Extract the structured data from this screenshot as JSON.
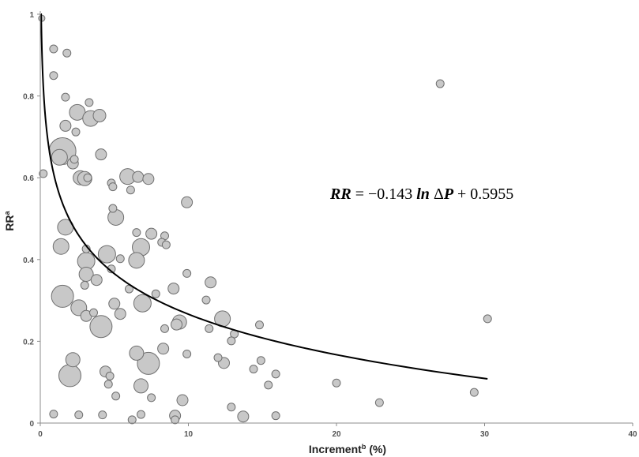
{
  "chart_data": {
    "type": "scatter",
    "subtype": "bubble",
    "xlabel": "Increment",
    "xlabel_superscript": "b",
    "xlabel_unit": "(%)",
    "ylabel": "RR",
    "ylabel_superscript": "a",
    "xlim": [
      0,
      40
    ],
    "ylim": [
      0,
      1
    ],
    "x_ticks": [
      "0",
      "10",
      "20",
      "30",
      "40"
    ],
    "y_ticks": [
      "0",
      "0.2",
      "0.4",
      "0.6",
      "0.8",
      "1"
    ],
    "grid": false,
    "colors": {
      "bubble_fill": "#c8c8c8",
      "bubble_stroke": "#6f6f6f",
      "trend": "#000000",
      "axis": "#8c8c8c"
    },
    "equation": {
      "lhs": "RR",
      "equals": " = −0.143 ",
      "func": "ln",
      "delta": " Δ",
      "var": "P",
      "rest": " +  0.5955"
    },
    "trendline": {
      "model": "logarithmic",
      "a": -0.143,
      "b": 0.5955,
      "x_range": [
        0.05,
        30.2
      ]
    },
    "points": [
      {
        "x": 0.1,
        "y": 0.99,
        "s": 4
      },
      {
        "x": 0.2,
        "y": 0.61,
        "s": 5
      },
      {
        "x": 0.9,
        "y": 0.915,
        "s": 5
      },
      {
        "x": 1.8,
        "y": 0.905,
        "s": 5
      },
      {
        "x": 0.9,
        "y": 0.85,
        "s": 5
      },
      {
        "x": 1.7,
        "y": 0.797,
        "s": 5
      },
      {
        "x": 3.3,
        "y": 0.784,
        "s": 5
      },
      {
        "x": 27.0,
        "y": 0.83,
        "s": 5
      },
      {
        "x": 2.5,
        "y": 0.76,
        "s": 10
      },
      {
        "x": 3.4,
        "y": 0.745,
        "s": 10
      },
      {
        "x": 4.0,
        "y": 0.752,
        "s": 8
      },
      {
        "x": 1.7,
        "y": 0.727,
        "s": 7
      },
      {
        "x": 2.4,
        "y": 0.712,
        "s": 5
      },
      {
        "x": 1.5,
        "y": 0.665,
        "s": 17
      },
      {
        "x": 1.3,
        "y": 0.65,
        "s": 10
      },
      {
        "x": 4.1,
        "y": 0.657,
        "s": 7
      },
      {
        "x": 2.2,
        "y": 0.635,
        "s": 7
      },
      {
        "x": 2.3,
        "y": 0.645,
        "s": 5
      },
      {
        "x": 2.7,
        "y": 0.6,
        "s": 9
      },
      {
        "x": 3.0,
        "y": 0.598,
        "s": 9
      },
      {
        "x": 3.2,
        "y": 0.6,
        "s": 5
      },
      {
        "x": 5.9,
        "y": 0.603,
        "s": 10
      },
      {
        "x": 6.6,
        "y": 0.602,
        "s": 7
      },
      {
        "x": 7.3,
        "y": 0.597,
        "s": 7
      },
      {
        "x": 4.8,
        "y": 0.587,
        "s": 5
      },
      {
        "x": 4.9,
        "y": 0.578,
        "s": 5
      },
      {
        "x": 6.1,
        "y": 0.57,
        "s": 5
      },
      {
        "x": 9.9,
        "y": 0.54,
        "s": 7
      },
      {
        "x": 4.9,
        "y": 0.525,
        "s": 5
      },
      {
        "x": 5.1,
        "y": 0.503,
        "s": 10
      },
      {
        "x": 1.7,
        "y": 0.479,
        "s": 10
      },
      {
        "x": 6.5,
        "y": 0.466,
        "s": 5
      },
      {
        "x": 7.5,
        "y": 0.463,
        "s": 7
      },
      {
        "x": 8.4,
        "y": 0.458,
        "s": 5
      },
      {
        "x": 8.2,
        "y": 0.442,
        "s": 5
      },
      {
        "x": 8.5,
        "y": 0.436,
        "s": 5
      },
      {
        "x": 1.4,
        "y": 0.432,
        "s": 10
      },
      {
        "x": 3.1,
        "y": 0.426,
        "s": 5
      },
      {
        "x": 6.8,
        "y": 0.43,
        "s": 11
      },
      {
        "x": 4.5,
        "y": 0.413,
        "s": 11
      },
      {
        "x": 5.4,
        "y": 0.402,
        "s": 5
      },
      {
        "x": 3.1,
        "y": 0.396,
        "s": 11
      },
      {
        "x": 6.5,
        "y": 0.398,
        "s": 10
      },
      {
        "x": 4.8,
        "y": 0.377,
        "s": 5
      },
      {
        "x": 3.1,
        "y": 0.364,
        "s": 9
      },
      {
        "x": 9.9,
        "y": 0.366,
        "s": 5
      },
      {
        "x": 3.8,
        "y": 0.35,
        "s": 7
      },
      {
        "x": 11.5,
        "y": 0.344,
        "s": 7
      },
      {
        "x": 3.0,
        "y": 0.337,
        "s": 5
      },
      {
        "x": 6.0,
        "y": 0.328,
        "s": 5
      },
      {
        "x": 9.0,
        "y": 0.329,
        "s": 7
      },
      {
        "x": 7.8,
        "y": 0.316,
        "s": 5
      },
      {
        "x": 1.5,
        "y": 0.31,
        "s": 14
      },
      {
        "x": 6.9,
        "y": 0.293,
        "s": 11
      },
      {
        "x": 11.2,
        "y": 0.301,
        "s": 5
      },
      {
        "x": 5.0,
        "y": 0.292,
        "s": 7
      },
      {
        "x": 2.6,
        "y": 0.282,
        "s": 10
      },
      {
        "x": 3.6,
        "y": 0.27,
        "s": 5
      },
      {
        "x": 5.4,
        "y": 0.267,
        "s": 7
      },
      {
        "x": 3.1,
        "y": 0.262,
        "s": 7
      },
      {
        "x": 12.3,
        "y": 0.255,
        "s": 10
      },
      {
        "x": 30.2,
        "y": 0.255,
        "s": 5
      },
      {
        "x": 9.4,
        "y": 0.247,
        "s": 9
      },
      {
        "x": 9.2,
        "y": 0.241,
        "s": 7
      },
      {
        "x": 14.8,
        "y": 0.24,
        "s": 5
      },
      {
        "x": 4.1,
        "y": 0.236,
        "s": 14
      },
      {
        "x": 11.4,
        "y": 0.231,
        "s": 5
      },
      {
        "x": 8.4,
        "y": 0.231,
        "s": 5
      },
      {
        "x": 13.1,
        "y": 0.218,
        "s": 5
      },
      {
        "x": 12.9,
        "y": 0.201,
        "s": 5
      },
      {
        "x": 8.3,
        "y": 0.182,
        "s": 7
      },
      {
        "x": 6.5,
        "y": 0.171,
        "s": 9
      },
      {
        "x": 9.9,
        "y": 0.169,
        "s": 5
      },
      {
        "x": 12.0,
        "y": 0.16,
        "s": 5
      },
      {
        "x": 2.2,
        "y": 0.155,
        "s": 9
      },
      {
        "x": 14.9,
        "y": 0.153,
        "s": 5
      },
      {
        "x": 7.3,
        "y": 0.146,
        "s": 14
      },
      {
        "x": 12.4,
        "y": 0.147,
        "s": 7
      },
      {
        "x": 14.4,
        "y": 0.132,
        "s": 5
      },
      {
        "x": 4.4,
        "y": 0.126,
        "s": 7
      },
      {
        "x": 15.9,
        "y": 0.12,
        "s": 5
      },
      {
        "x": 2.0,
        "y": 0.116,
        "s": 14
      },
      {
        "x": 4.7,
        "y": 0.115,
        "s": 5
      },
      {
        "x": 4.6,
        "y": 0.095,
        "s": 5
      },
      {
        "x": 15.4,
        "y": 0.093,
        "s": 5
      },
      {
        "x": 6.8,
        "y": 0.091,
        "s": 9
      },
      {
        "x": 20.0,
        "y": 0.098,
        "s": 5
      },
      {
        "x": 5.1,
        "y": 0.066,
        "s": 5
      },
      {
        "x": 7.5,
        "y": 0.062,
        "s": 5
      },
      {
        "x": 9.6,
        "y": 0.056,
        "s": 7
      },
      {
        "x": 29.3,
        "y": 0.075,
        "s": 5
      },
      {
        "x": 22.9,
        "y": 0.05,
        "s": 5
      },
      {
        "x": 12.9,
        "y": 0.039,
        "s": 5
      },
      {
        "x": 0.9,
        "y": 0.022,
        "s": 5
      },
      {
        "x": 2.6,
        "y": 0.02,
        "s": 5
      },
      {
        "x": 4.2,
        "y": 0.02,
        "s": 5
      },
      {
        "x": 6.8,
        "y": 0.021,
        "s": 5
      },
      {
        "x": 9.1,
        "y": 0.018,
        "s": 7
      },
      {
        "x": 13.7,
        "y": 0.016,
        "s": 7
      },
      {
        "x": 15.9,
        "y": 0.018,
        "s": 5
      },
      {
        "x": 6.2,
        "y": 0.008,
        "s": 5
      },
      {
        "x": 9.1,
        "y": 0.008,
        "s": 5
      }
    ]
  }
}
